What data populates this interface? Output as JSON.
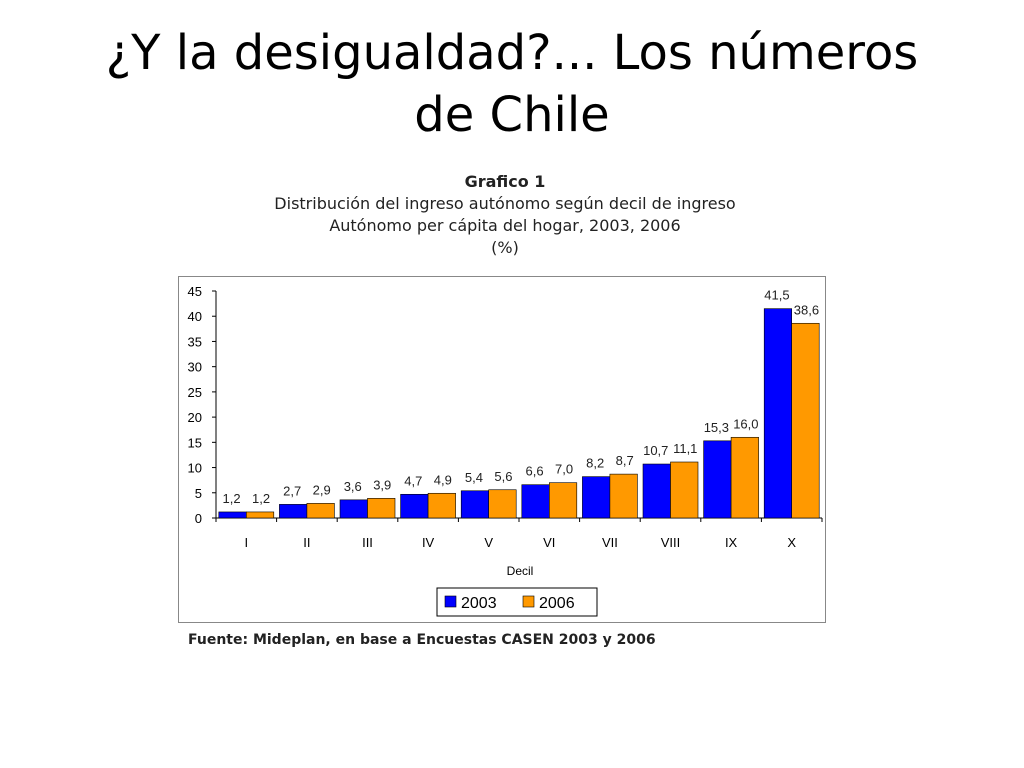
{
  "slide": {
    "title_line1": "¿Y la desigualdad?... Los números",
    "title_line2": "de Chile"
  },
  "chart_header": {
    "label": "Grafico 1",
    "line1": "Distribución del ingreso autónomo según decil de ingreso",
    "line2": "Autónomo per cápita del hogar, 2003, 2006",
    "line3": "(%)"
  },
  "source_note": "Fuente: Mideplan, en base a Encuestas CASEN 2003 y 2006",
  "colors": {
    "series_2003": "#0000ff",
    "series_2006": "#ff9900"
  },
  "chart_data": {
    "type": "bar",
    "title": "Grafico 1",
    "xlabel": "Decil",
    "ylabel": "",
    "categories": [
      "I",
      "II",
      "III",
      "IV",
      "V",
      "VI",
      "VII",
      "VIII",
      "IX",
      "X"
    ],
    "ylim": [
      0,
      45
    ],
    "yticks": [
      0,
      5,
      10,
      15,
      20,
      25,
      30,
      35,
      40,
      45
    ],
    "grid": false,
    "legend_position": "bottom",
    "series": [
      {
        "name": "2003",
        "values": [
          1.2,
          2.7,
          3.6,
          4.7,
          5.4,
          6.6,
          8.2,
          10.7,
          15.3,
          41.5
        ],
        "labels": [
          "1,2",
          "2,7",
          "3,6",
          "4,7",
          "5,4",
          "6,6",
          "8,2",
          "10,7",
          "15,3",
          "41,5"
        ]
      },
      {
        "name": "2006",
        "values": [
          1.2,
          2.9,
          3.9,
          4.9,
          5.6,
          7.0,
          8.7,
          11.1,
          16.0,
          38.6
        ],
        "labels": [
          "1,2",
          "2,9",
          "3,9",
          "4,9",
          "5,6",
          "7,0",
          "8,7",
          "11,1",
          "16,0",
          "38,6"
        ]
      }
    ]
  }
}
